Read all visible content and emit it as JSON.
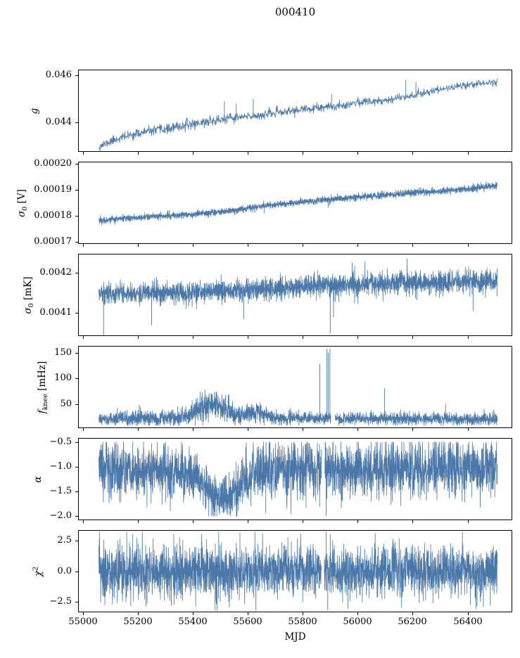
{
  "chart_data": {
    "type": "line",
    "title": "000410",
    "xlabel": "MJD",
    "line_color": "#4b78a8",
    "axis_color": "#000000",
    "background": "#ffffff",
    "grid": false,
    "legend": "none",
    "xlim": [
      54985,
      56560
    ],
    "x_start": 55058,
    "x_end": 56508,
    "xticks": [
      {
        "v": 55000,
        "label": "55000"
      },
      {
        "v": 55200,
        "label": "55200"
      },
      {
        "v": 55400,
        "label": "55400"
      },
      {
        "v": 55600,
        "label": "55600"
      },
      {
        "v": 55800,
        "label": "55800"
      },
      {
        "v": 56000,
        "label": "56000"
      },
      {
        "v": 56200,
        "label": "56200"
      },
      {
        "v": 56400,
        "label": "56400"
      }
    ],
    "panels": [
      {
        "id": "g",
        "ylabel_parts": [
          {
            "t": "g",
            "i": true
          }
        ],
        "ylim": [
          0.0428,
          0.0462
        ],
        "yticks": [
          {
            "v": 0.046,
            "label": "0.046"
          },
          {
            "v": 0.044,
            "label": "0.044"
          }
        ],
        "step": 1.2,
        "seed": 11,
        "trend": [
          [
            55058,
            0.043
          ],
          [
            55080,
            0.0431
          ],
          [
            55120,
            0.0433
          ],
          [
            55180,
            0.0435
          ],
          [
            55250,
            0.04365
          ],
          [
            55320,
            0.04375
          ],
          [
            55400,
            0.04395
          ],
          [
            55460,
            0.04405
          ],
          [
            55520,
            0.04415
          ],
          [
            55600,
            0.04425
          ],
          [
            55700,
            0.0444
          ],
          [
            55800,
            0.04455
          ],
          [
            55900,
            0.04465
          ],
          [
            56000,
            0.04485
          ],
          [
            56100,
            0.04495
          ],
          [
            56200,
            0.04515
          ],
          [
            56300,
            0.0454
          ],
          [
            56400,
            0.0456
          ],
          [
            56508,
            0.0457
          ]
        ],
        "amp": [
          [
            55058,
            9e-05
          ],
          [
            55450,
            0.00011
          ],
          [
            55700,
            9e-05
          ],
          [
            56508,
            8e-05
          ]
        ],
        "spikes": [
          [
            55515,
            0.0449
          ],
          [
            55558,
            0.0448
          ],
          [
            55620,
            0.045
          ],
          [
            55905,
            0.0452
          ],
          [
            56175,
            0.0458
          ],
          [
            56212,
            0.0457
          ]
        ]
      },
      {
        "id": "sigma0-v",
        "ylabel_parts": [
          {
            "t": "σ",
            "i": true
          },
          {
            "t": "0",
            "sub": true
          },
          {
            "t": " [V]"
          }
        ],
        "ylim": [
          0.0001695,
          0.0002005
        ],
        "yticks": [
          {
            "v": 0.0002,
            "label": "0.00020"
          },
          {
            "v": 0.00019,
            "label": "0.00019"
          },
          {
            "v": 0.00018,
            "label": "0.00018"
          },
          {
            "v": 0.00017,
            "label": "0.00017"
          }
        ],
        "step": 0.5,
        "seed": 22,
        "trend": [
          [
            55058,
            0.0001782
          ],
          [
            55150,
            0.000179
          ],
          [
            55250,
            0.0001797
          ],
          [
            55350,
            0.0001803
          ],
          [
            55450,
            0.000181
          ],
          [
            55550,
            0.000182
          ],
          [
            55650,
            0.0001838
          ],
          [
            55750,
            0.0001848
          ],
          [
            55850,
            0.0001858
          ],
          [
            55950,
            0.0001868
          ],
          [
            56050,
            0.0001876
          ],
          [
            56150,
            0.0001884
          ],
          [
            56250,
            0.0001892
          ],
          [
            56350,
            0.0001898
          ],
          [
            56508,
            0.0001915
          ]
        ],
        "amp": [
          [
            55058,
            6e-07
          ],
          [
            56508,
            7e-07
          ]
        ],
        "spikes": [
          [
            55660,
            0.000181
          ],
          [
            55893,
            0.0001832
          ],
          [
            55898,
            0.000184
          ]
        ]
      },
      {
        "id": "sigma0-mk",
        "ylabel_parts": [
          {
            "t": "σ",
            "i": true
          },
          {
            "t": "0",
            "sub": true
          },
          {
            "t": " [mK]"
          }
        ],
        "ylim": [
          0.004045,
          0.004245
        ],
        "yticks": [
          {
            "v": 0.0042,
            "label": "0.0042"
          },
          {
            "v": 0.0041,
            "label": "0.0041"
          }
        ],
        "step": 0.5,
        "seed": 33,
        "trend": [
          [
            55058,
            0.004148
          ],
          [
            55200,
            0.004149
          ],
          [
            55300,
            0.004149
          ],
          [
            55400,
            0.004151
          ],
          [
            55500,
            0.004153
          ],
          [
            55600,
            0.004158
          ],
          [
            55700,
            0.004163
          ],
          [
            55800,
            0.004166
          ],
          [
            55900,
            0.004167
          ],
          [
            56000,
            0.004171
          ],
          [
            56100,
            0.004173
          ],
          [
            56250,
            0.004176
          ],
          [
            56400,
            0.004178
          ],
          [
            56508,
            0.004179
          ]
        ],
        "amp": [
          [
            55058,
            1.2e-05
          ],
          [
            55400,
            1.3e-05
          ],
          [
            55800,
            1.3e-05
          ],
          [
            56100,
            1.5e-05
          ],
          [
            56508,
            1.4e-05
          ]
        ],
        "spikes": [
          [
            55075,
            0.00404
          ],
          [
            55250,
            0.00407
          ],
          [
            55585,
            0.004085
          ],
          [
            55900,
            0.00405
          ],
          [
            55912,
            0.00409
          ],
          [
            55980,
            0.004225
          ],
          [
            56180,
            0.004235
          ],
          [
            56420,
            0.004105
          ]
        ]
      },
      {
        "id": "fknee",
        "ylabel_parts": [
          {
            "t": "f",
            "i": true
          },
          {
            "t": "knee",
            "sub": true
          },
          {
            "t": " [mHz]"
          }
        ],
        "ylim": [
          4,
          162
        ],
        "yticks": [
          {
            "v": 150,
            "label": "150"
          },
          {
            "v": 100,
            "label": "100"
          },
          {
            "v": 50,
            "label": "50"
          }
        ],
        "step": 0.5,
        "seed": 44,
        "clamp": [
          8,
          158
        ],
        "trend": [
          [
            55058,
            20
          ],
          [
            55350,
            22
          ],
          [
            55400,
            30
          ],
          [
            55430,
            42
          ],
          [
            55460,
            50
          ],
          [
            55490,
            48
          ],
          [
            55520,
            38
          ],
          [
            55550,
            30
          ],
          [
            55580,
            26
          ],
          [
            55610,
            30
          ],
          [
            55640,
            34
          ],
          [
            55670,
            26
          ],
          [
            55700,
            22
          ],
          [
            56508,
            20
          ]
        ],
        "amp": [
          [
            55058,
            6
          ],
          [
            55380,
            8
          ],
          [
            55430,
            14
          ],
          [
            55520,
            12
          ],
          [
            55600,
            9
          ],
          [
            55650,
            10
          ],
          [
            55700,
            6
          ],
          [
            56508,
            6
          ]
        ],
        "spikes": [
          [
            55125,
            42
          ],
          [
            55205,
            48
          ],
          [
            55290,
            40
          ],
          [
            55345,
            45
          ],
          [
            55755,
            42
          ],
          [
            55862,
            128
          ],
          [
            55888,
            158
          ],
          [
            55893,
            150
          ],
          [
            55899,
            158
          ],
          [
            56098,
            80
          ],
          [
            56320,
            50
          ],
          [
            56460,
            40
          ]
        ],
        "gaps": [
          [
            55903,
            55918
          ]
        ]
      },
      {
        "id": "alpha",
        "ylabel_parts": [
          {
            "t": "α",
            "i": true
          }
        ],
        "ylim": [
          -2.07,
          -0.43
        ],
        "yticks": [
          {
            "v": -0.5,
            "label": "−0.5"
          },
          {
            "v": -1.0,
            "label": "−1.0"
          },
          {
            "v": -1.5,
            "label": "−1.5"
          },
          {
            "v": -2.0,
            "label": "−2.0"
          }
        ],
        "step": 0.5,
        "seed": 55,
        "clamp": [
          -2.0,
          -0.5
        ],
        "trend": [
          [
            55058,
            -1.05
          ],
          [
            55250,
            -1.08
          ],
          [
            55300,
            -1.15
          ],
          [
            55350,
            -1.1
          ],
          [
            55420,
            -1.25
          ],
          [
            55450,
            -1.45
          ],
          [
            55480,
            -1.6
          ],
          [
            55530,
            -1.62
          ],
          [
            55560,
            -1.5
          ],
          [
            55590,
            -1.3
          ],
          [
            55620,
            -1.12
          ],
          [
            55700,
            -1.05
          ],
          [
            56508,
            -1.05
          ]
        ],
        "amp": [
          [
            55058,
            0.28
          ],
          [
            55300,
            0.26
          ],
          [
            55450,
            0.22
          ],
          [
            55550,
            0.22
          ],
          [
            55620,
            0.28
          ],
          [
            56508,
            0.28
          ]
        ],
        "spikes": [
          [
            55882,
            -0.5
          ],
          [
            55885,
            -2.0
          ]
        ],
        "gaps": [
          [
            55868,
            55880
          ]
        ]
      },
      {
        "id": "chi2",
        "ylabel_parts": [
          {
            "t": "χ",
            "i": true
          },
          {
            "t": "2",
            "sup": true
          }
        ],
        "ylim": [
          -3.3,
          3.3
        ],
        "yticks": [
          {
            "v": 2.5,
            "label": "2.5"
          },
          {
            "v": 0,
            "label": "0.0"
          },
          {
            "v": -2.5,
            "label": "−2.5"
          }
        ],
        "step": 0.5,
        "seed": 66,
        "clamp": [
          -3.2,
          3.2
        ],
        "trend": [
          [
            55058,
            0
          ],
          [
            56508,
            0
          ]
        ],
        "amp": [
          [
            55058,
            1.05
          ],
          [
            56508,
            1.05
          ]
        ],
        "spikes": [
          [
            55885,
            3.2
          ],
          [
            55891,
            -3.2
          ],
          [
            55900,
            3.0
          ]
        ],
        "gaps": [
          [
            55868,
            55878
          ]
        ]
      }
    ]
  }
}
